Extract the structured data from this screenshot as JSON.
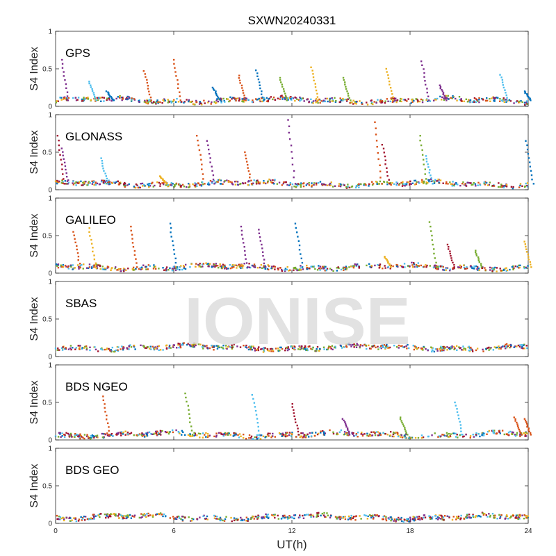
{
  "chart_data": {
    "type": "scatter",
    "title": "SXWN20240331",
    "xlabel": "UT(h)",
    "xlim": [
      0,
      24
    ],
    "xticks": [
      0,
      6,
      12,
      18,
      24
    ],
    "ylim": [
      0,
      1
    ],
    "yticks": [
      0,
      0.5,
      1
    ],
    "grid": false,
    "watermark": "IONISE",
    "colors": [
      "#0072BD",
      "#D95319",
      "#EDB120",
      "#7E2F8E",
      "#77AC30",
      "#4DBEEE",
      "#A2142F"
    ],
    "panels": [
      {
        "name": "GPS",
        "ylabel": "S4 Index",
        "baseline": 0.08,
        "spikes": [
          {
            "x": 0.3,
            "y": 0.62,
            "s": 3
          },
          {
            "x": 1.7,
            "y": 0.33,
            "s": 5
          },
          {
            "x": 2.6,
            "y": 0.2,
            "s": 0
          },
          {
            "x": 4.5,
            "y": 0.47,
            "s": 1
          },
          {
            "x": 6.0,
            "y": 0.62,
            "s": 1
          },
          {
            "x": 8.0,
            "y": 0.25,
            "s": 0
          },
          {
            "x": 9.3,
            "y": 0.41,
            "s": 1
          },
          {
            "x": 10.2,
            "y": 0.48,
            "s": 0
          },
          {
            "x": 11.4,
            "y": 0.38,
            "s": 4
          },
          {
            "x": 13.0,
            "y": 0.52,
            "s": 2
          },
          {
            "x": 14.6,
            "y": 0.38,
            "s": 4
          },
          {
            "x": 16.8,
            "y": 0.5,
            "s": 2
          },
          {
            "x": 18.6,
            "y": 0.6,
            "s": 3
          },
          {
            "x": 19.5,
            "y": 0.28,
            "s": 3
          },
          {
            "x": 22.6,
            "y": 0.42,
            "s": 5
          },
          {
            "x": 23.8,
            "y": 0.2,
            "s": 0
          }
        ]
      },
      {
        "name": "GLONASS",
        "ylabel": "S4 Index",
        "baseline": 0.08,
        "spikes": [
          {
            "x": 0.1,
            "y": 0.72,
            "s": 6
          },
          {
            "x": 0.3,
            "y": 0.55,
            "s": 3
          },
          {
            "x": 2.3,
            "y": 0.42,
            "s": 5
          },
          {
            "x": 5.3,
            "y": 0.18,
            "s": 2
          },
          {
            "x": 7.2,
            "y": 0.72,
            "s": 1
          },
          {
            "x": 7.7,
            "y": 0.65,
            "s": 3
          },
          {
            "x": 9.6,
            "y": 0.5,
            "s": 1
          },
          {
            "x": 11.8,
            "y": 0.93,
            "s": 3
          },
          {
            "x": 16.2,
            "y": 0.9,
            "s": 1
          },
          {
            "x": 16.6,
            "y": 0.6,
            "s": 6
          },
          {
            "x": 18.5,
            "y": 0.72,
            "s": 4
          },
          {
            "x": 18.8,
            "y": 0.45,
            "s": 5
          },
          {
            "x": 23.9,
            "y": 0.65,
            "s": 0
          }
        ]
      },
      {
        "name": "GALILEO",
        "ylabel": "S4 Index",
        "baseline": 0.08,
        "spikes": [
          {
            "x": 0.9,
            "y": 0.55,
            "s": 1
          },
          {
            "x": 1.7,
            "y": 0.6,
            "s": 2
          },
          {
            "x": 3.8,
            "y": 0.62,
            "s": 1
          },
          {
            "x": 5.8,
            "y": 0.66,
            "s": 0
          },
          {
            "x": 9.4,
            "y": 0.62,
            "s": 3
          },
          {
            "x": 10.3,
            "y": 0.58,
            "s": 3
          },
          {
            "x": 12.2,
            "y": 0.66,
            "s": 0
          },
          {
            "x": 16.7,
            "y": 0.22,
            "s": 2
          },
          {
            "x": 19.0,
            "y": 0.68,
            "s": 4
          },
          {
            "x": 19.9,
            "y": 0.38,
            "s": 6
          },
          {
            "x": 21.3,
            "y": 0.3,
            "s": 4
          },
          {
            "x": 23.8,
            "y": 0.42,
            "s": 2
          }
        ]
      },
      {
        "name": "SBAS",
        "ylabel": "S4 Index",
        "baseline": 0.12,
        "spikes": []
      },
      {
        "name": "BDS NGEO",
        "ylabel": "S4 Index",
        "baseline": 0.07,
        "spikes": [
          {
            "x": 2.4,
            "y": 0.58,
            "s": 1
          },
          {
            "x": 6.6,
            "y": 0.62,
            "s": 4
          },
          {
            "x": 10.0,
            "y": 0.6,
            "s": 5
          },
          {
            "x": 12.0,
            "y": 0.48,
            "s": 6
          },
          {
            "x": 14.6,
            "y": 0.28,
            "s": 3
          },
          {
            "x": 17.5,
            "y": 0.3,
            "s": 4
          },
          {
            "x": 20.3,
            "y": 0.5,
            "s": 5
          },
          {
            "x": 23.3,
            "y": 0.3,
            "s": 1
          },
          {
            "x": 23.8,
            "y": 0.28,
            "s": 1
          }
        ]
      },
      {
        "name": "BDS GEO",
        "ylabel": "S4 Index",
        "baseline": 0.08,
        "spikes": []
      }
    ]
  }
}
